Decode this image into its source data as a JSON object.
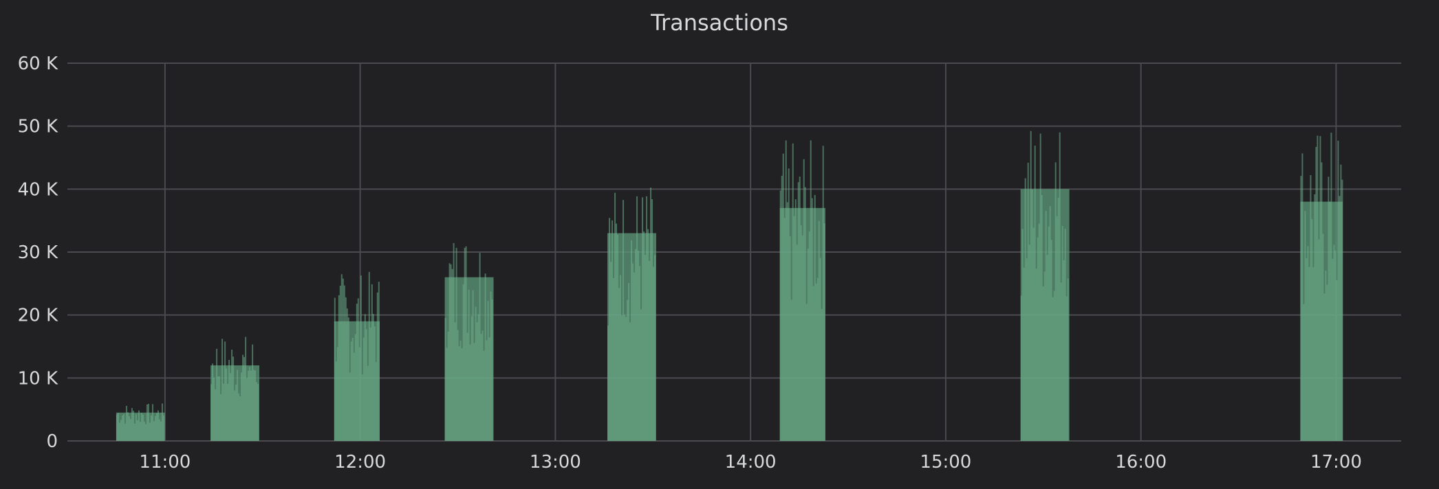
{
  "chart_data": {
    "type": "bar",
    "title": "Transactions",
    "xlabel": "",
    "ylabel": "",
    "x_axis": {
      "start": "10:30",
      "end": "17:20",
      "ticks": [
        "11:00",
        "12:00",
        "13:00",
        "14:00",
        "15:00",
        "16:00",
        "17:00"
      ]
    },
    "y_axis": {
      "min": 0,
      "max": 60000,
      "ticks": [
        {
          "value": 0,
          "label": "0"
        },
        {
          "value": 10000,
          "label": "10 K"
        },
        {
          "value": 20000,
          "label": "20 K"
        },
        {
          "value": 30000,
          "label": "30 K"
        },
        {
          "value": 40000,
          "label": "40 K"
        },
        {
          "value": 50000,
          "label": "50 K"
        },
        {
          "value": 60000,
          "label": "60 K"
        }
      ]
    },
    "grid": true,
    "legend": "none",
    "color": "#5d9a79",
    "bursts": [
      {
        "start": "10:45",
        "end": "10:60",
        "typical": 4500,
        "peak": 6000
      },
      {
        "start": "11:14",
        "end": "11:29",
        "typical": 12000,
        "peak": 17000
      },
      {
        "start": "11:52",
        "end": "12:06",
        "typical": 19000,
        "peak": 27000
      },
      {
        "start": "12:26",
        "end": "12:41",
        "typical": 26000,
        "peak": 34000
      },
      {
        "start": "13:16",
        "end": "13:31",
        "typical": 33000,
        "peak": 41000
      },
      {
        "start": "14:09",
        "end": "14:23",
        "typical": 37000,
        "peak": 48000
      },
      {
        "start": "15:23",
        "end": "15:38",
        "typical": 40000,
        "peak": 52000
      },
      {
        "start": "16:49",
        "end": "17:02",
        "typical": 38000,
        "peak": 50000
      }
    ]
  }
}
